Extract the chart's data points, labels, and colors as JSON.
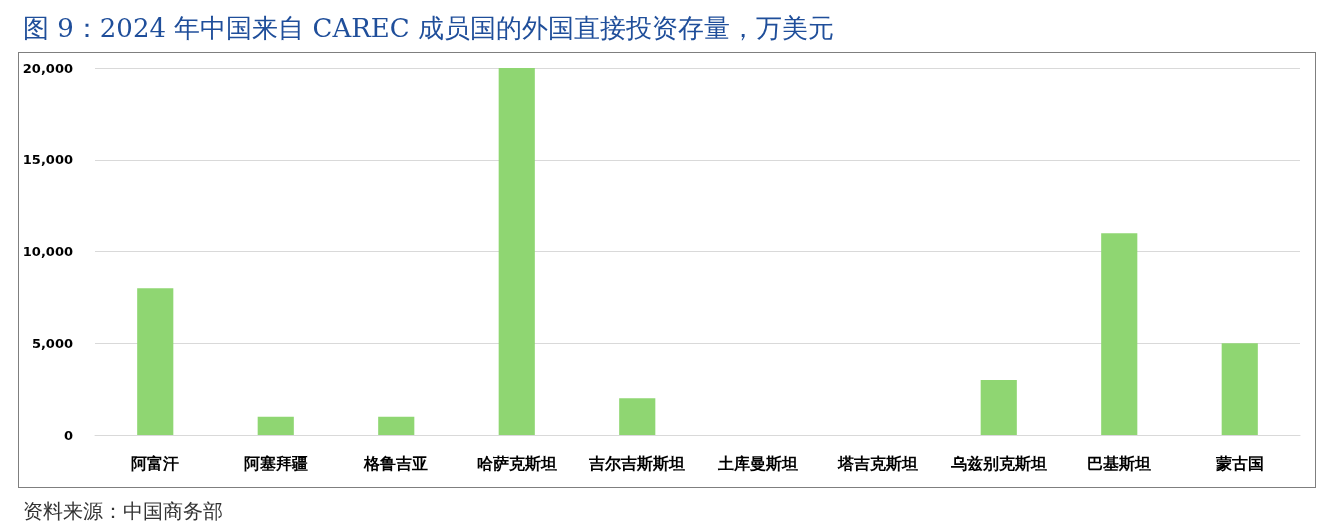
{
  "chart_data": {
    "type": "bar",
    "title": "图 9：2024 年中国来自 CAREC 成员国的外国直接投资存量，万美元",
    "categories": [
      "阿富汗",
      "阿塞拜疆",
      "格鲁吉亚",
      "哈萨克斯坦",
      "吉尔吉斯斯坦",
      "土库曼斯坦",
      "塔吉克斯坦",
      "乌兹别克斯坦",
      "巴基斯坦",
      "蒙古国"
    ],
    "values": [
      8000,
      1000,
      1000,
      20000,
      2000,
      0,
      0,
      3000,
      11000,
      5000
    ],
    "color": "#8fd672",
    "ylim": [
      0,
      20000
    ],
    "yticks": [
      0,
      {
        "value": 5000,
        "label": "5,000"
      },
      {
        "value": 10000,
        "label": "10,000"
      },
      {
        "value": 15000,
        "label": "15,000"
      },
      {
        "value": 20000,
        "label": "20,000"
      }
    ],
    "grid": "y",
    "annotations": [
      "资料来源：中国商务部"
    ]
  }
}
